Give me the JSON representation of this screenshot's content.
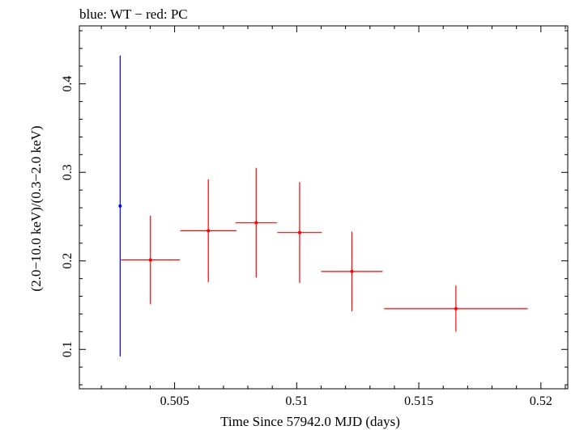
{
  "chart_data": {
    "type": "scatter",
    "title": "blue: WT − red: PC",
    "xlabel": "Time Since 57942.0 MJD (days)",
    "ylabel": "(2.0−10.0 keV)/(0.3−2.0 keV)",
    "xlim": [
      0.5011,
      0.5211
    ],
    "ylim": [
      0.0555,
      0.4655
    ],
    "x_ticks": [
      0.505,
      0.51,
      0.515,
      0.52
    ],
    "x_tick_labels": [
      "0.505",
      "0.51",
      "0.515",
      "0.52"
    ],
    "y_ticks": [
      0.1,
      0.2,
      0.3,
      0.4
    ],
    "y_tick_labels": [
      "0.1",
      "0.2",
      "0.3",
      "0.4"
    ],
    "x_minor_step": 0.001,
    "y_minor_step": 0.02,
    "series": [
      {
        "name": "WT",
        "color": "#0000ff",
        "points": [
          {
            "x": 0.50277,
            "xerr": 0.0,
            "y": 0.262,
            "yerr_lo": 0.17,
            "yerr_hi": 0.17
          }
        ]
      },
      {
        "name": "PC",
        "color": "#ff0000",
        "points": [
          {
            "x": 0.50401,
            "xerr": 0.00121,
            "y": 0.201,
            "yerr_lo": 0.05,
            "yerr_hi": 0.05
          },
          {
            "x": 0.50638,
            "xerr": 0.00115,
            "y": 0.234,
            "yerr_lo": 0.058,
            "yerr_hi": 0.058
          },
          {
            "x": 0.50834,
            "xerr": 0.00085,
            "y": 0.243,
            "yerr_lo": 0.062,
            "yerr_hi": 0.062
          },
          {
            "x": 0.51012,
            "xerr": 0.00091,
            "y": 0.232,
            "yerr_lo": 0.057,
            "yerr_hi": 0.057
          },
          {
            "x": 0.51226,
            "xerr": 0.00126,
            "y": 0.188,
            "yerr_lo": 0.045,
            "yerr_hi": 0.045
          },
          {
            "x": 0.51652,
            "xerr": 0.00294,
            "y": 0.146,
            "yerr_lo": 0.026,
            "yerr_hi": 0.026
          }
        ]
      }
    ]
  }
}
